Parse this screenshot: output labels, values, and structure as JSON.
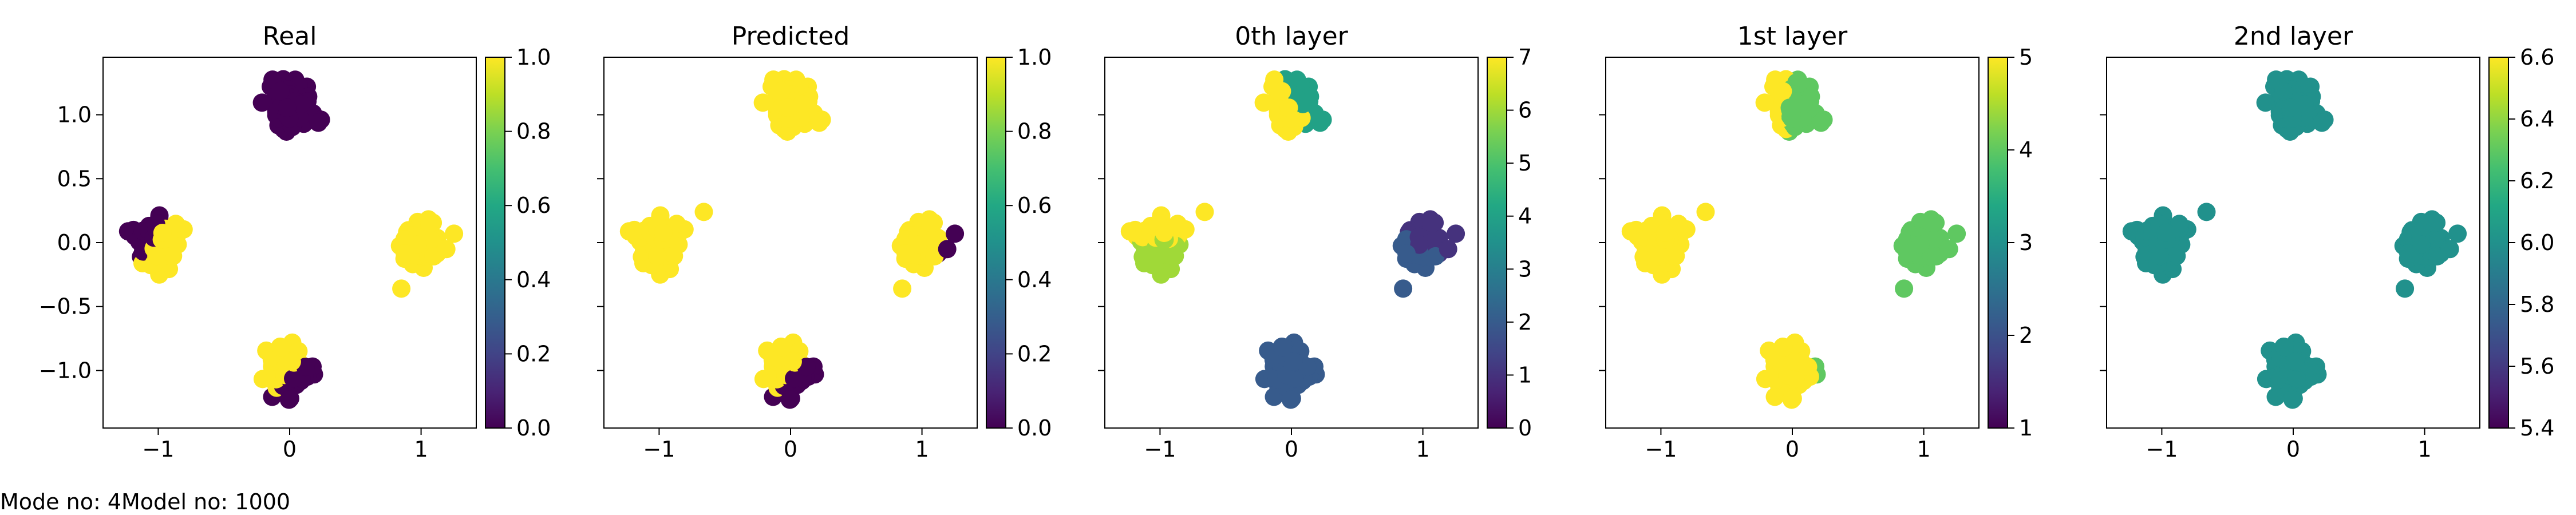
{
  "footer": {
    "text": "Mode no: 4Model no: 1000"
  },
  "chart_data": [
    {
      "type": "scatter",
      "title": "Real",
      "xlim": [
        -1.42,
        1.42
      ],
      "ylim": [
        -1.45,
        1.45
      ],
      "xticks": [
        -1,
        0,
        1
      ],
      "xticklabels": [
        "−1",
        "0",
        "1"
      ],
      "yticks": [
        1.0,
        0.5,
        0.0,
        -0.5,
        -1.0
      ],
      "yticklabels": [
        "1.0",
        "0.5",
        "0.0",
        "−0.5",
        "−1.0"
      ],
      "show_yticklabels": true,
      "colorbar": {
        "min": 0.0,
        "max": 1.0,
        "ticks": [
          0.0,
          0.2,
          0.4,
          0.6,
          0.8,
          1.0
        ],
        "ticklabels": [
          "0.0",
          "0.2",
          "0.4",
          "0.6",
          "0.8",
          "1.0"
        ]
      },
      "clusters": [
        {
          "center": [
            0,
            1.05
          ],
          "value": 0.0
        },
        {
          "center": [
            -1,
            0
          ],
          "value": 1.0,
          "split": {
            "angle": 150,
            "value": 0.0,
            "extra": [
              [
                -0.66,
                0.24
              ]
            ]
          }
        },
        {
          "center": [
            1,
            0
          ],
          "value": 1.0,
          "extra": [
            [
              0.85,
              -0.36
            ]
          ]
        },
        {
          "center": [
            0,
            -1
          ],
          "value": 1.0,
          "split": {
            "angle": -45,
            "value": 0.0
          }
        }
      ]
    },
    {
      "type": "scatter",
      "title": "Predicted",
      "xlim": [
        -1.42,
        1.42
      ],
      "ylim": [
        -1.45,
        1.45
      ],
      "xticks": [
        -1,
        0,
        1
      ],
      "xticklabels": [
        "−1",
        "0",
        "1"
      ],
      "yticks": [
        1.0,
        0.5,
        0.0,
        -0.5,
        -1.0
      ],
      "yticklabels": [],
      "show_yticklabels": false,
      "colorbar": {
        "min": 0.0,
        "max": 1.0,
        "ticks": [
          0.0,
          0.2,
          0.4,
          0.6,
          0.8,
          1.0
        ],
        "ticklabels": [
          "0.0",
          "0.2",
          "0.4",
          "0.6",
          "0.8",
          "1.0"
        ]
      },
      "clusters": [
        {
          "center": [
            0,
            1.05
          ],
          "value": 1.0
        },
        {
          "center": [
            -1,
            0
          ],
          "value": 1.0,
          "extra": [
            [
              -0.66,
              0.24
            ]
          ]
        },
        {
          "center": [
            1,
            0
          ],
          "value": 1.0,
          "split": {
            "angle": -25,
            "value": 0.0,
            "small": true
          },
          "extra": [
            [
              0.85,
              -0.36
            ]
          ]
        },
        {
          "center": [
            0,
            -1
          ],
          "value": 1.0,
          "split": {
            "angle": -45,
            "value": 0.0
          }
        }
      ]
    },
    {
      "type": "scatter",
      "title": "0th layer",
      "xlim": [
        -1.42,
        1.42
      ],
      "ylim": [
        -1.45,
        1.45
      ],
      "xticks": [
        -1,
        0,
        1
      ],
      "xticklabels": [
        "−1",
        "0",
        "1"
      ],
      "yticks": [
        1.0,
        0.5,
        0.0,
        -0.5,
        -1.0
      ],
      "yticklabels": [],
      "show_yticklabels": false,
      "colorbar": {
        "min": 0,
        "max": 7,
        "ticks": [
          0,
          1,
          2,
          3,
          4,
          5,
          6,
          7
        ],
        "ticklabels": [
          "0",
          "1",
          "2",
          "3",
          "4",
          "5",
          "6",
          "7"
        ]
      },
      "clusters": [
        {
          "center": [
            0,
            1.05
          ],
          "value": 7,
          "split": {
            "angle": 30,
            "value": 4
          }
        },
        {
          "center": [
            -1,
            0
          ],
          "value": 6,
          "split": {
            "angle": 90,
            "value": 7
          },
          "extra": [
            [
              -0.66,
              0.24
            ]
          ]
        },
        {
          "center": [
            1,
            0
          ],
          "value": 1,
          "split": {
            "angle": -120,
            "value": 2
          },
          "extra": [
            [
              0.85,
              -0.36
            ]
          ]
        },
        {
          "center": [
            0,
            -1
          ],
          "value": 2
        }
      ]
    },
    {
      "type": "scatter",
      "title": "1st layer",
      "xlim": [
        -1.42,
        1.42
      ],
      "ylim": [
        -1.45,
        1.45
      ],
      "xticks": [
        -1,
        0,
        1
      ],
      "xticklabels": [
        "−1",
        "0",
        "1"
      ],
      "yticks": [
        1.0,
        0.5,
        0.0,
        -0.5,
        -1.0
      ],
      "yticklabels": [],
      "show_yticklabels": false,
      "colorbar": {
        "min": 1,
        "max": 5,
        "ticks": [
          1,
          2,
          3,
          4,
          5
        ],
        "ticklabels": [
          "1",
          "2",
          "3",
          "4",
          "5"
        ]
      },
      "clusters": [
        {
          "center": [
            0,
            1.05
          ],
          "value": 4,
          "split": {
            "angle": 180,
            "value": 5
          }
        },
        {
          "center": [
            -1,
            0
          ],
          "value": 5,
          "extra": [
            [
              -0.66,
              0.24
            ]
          ]
        },
        {
          "center": [
            1,
            0
          ],
          "value": 4,
          "extra": [
            [
              0.85,
              -0.36
            ]
          ]
        },
        {
          "center": [
            0,
            -1
          ],
          "value": 5,
          "split": {
            "angle": 10,
            "value": 4,
            "small": true
          }
        }
      ]
    },
    {
      "type": "scatter",
      "title": "2nd layer",
      "xlim": [
        -1.42,
        1.42
      ],
      "ylim": [
        -1.45,
        1.45
      ],
      "xticks": [
        -1,
        0,
        1
      ],
      "xticklabels": [
        "−1",
        "0",
        "1"
      ],
      "yticks": [
        1.0,
        0.5,
        0.0,
        -0.5,
        -1.0
      ],
      "yticklabels": [],
      "show_yticklabels": false,
      "colorbar": {
        "min": 5.4,
        "max": 6.6,
        "ticks": [
          5.4,
          5.6,
          5.8,
          6.0,
          6.2,
          6.4,
          6.6
        ],
        "ticklabels": [
          "5.4",
          "5.6",
          "5.8",
          "6.0",
          "6.2",
          "6.4",
          "6.6"
        ]
      },
      "clusters": [
        {
          "center": [
            0,
            1.05
          ],
          "value": 6.0
        },
        {
          "center": [
            -1,
            0
          ],
          "value": 6.0,
          "extra": [
            [
              -0.66,
              0.24
            ]
          ]
        },
        {
          "center": [
            1,
            0
          ],
          "value": 6.0,
          "extra": [
            [
              0.85,
              -0.36
            ]
          ]
        },
        {
          "center": [
            0,
            -1
          ],
          "value": 6.0
        }
      ]
    }
  ]
}
